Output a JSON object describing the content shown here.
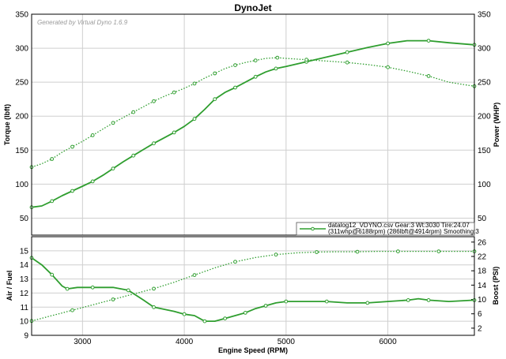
{
  "colors": {
    "series": "#2f9e2f",
    "grid": "#cfcfcf",
    "frame": "#000000",
    "background": "#ffffff"
  },
  "chart_data": [
    {
      "type": "line",
      "title": "DynoJet",
      "watermark": "Generated by Virtual Dyno 1.6.9",
      "xlabel": "",
      "ylabel": "Torque (lbft)",
      "y2label": "Power (WHP)",
      "xlim": [
        2500,
        6850
      ],
      "ylim": [
        25,
        350
      ],
      "y2lim": [
        25,
        350
      ],
      "xticks": [
        3000,
        4000,
        5000,
        6000
      ],
      "yticks": [
        50,
        100,
        150,
        200,
        250,
        300,
        350
      ],
      "y2ticks": [
        50,
        100,
        150,
        200,
        250,
        300,
        350
      ],
      "grid": true,
      "legend": {
        "position": "bottom-right",
        "lines": [
          "datalog12_VDYNO.csv Gear:3 Wt:3030 Tire:24.07",
          "(311whp@6188rpm) (286lbft@4914rpm) Smoothing:3"
        ]
      },
      "series": [
        {
          "axis": "right",
          "style": "solid",
          "x": [
            2500,
            2600,
            2700,
            2800,
            2900,
            3000,
            3100,
            3200,
            3300,
            3400,
            3500,
            3600,
            3700,
            3800,
            3900,
            4000,
            4100,
            4200,
            4300,
            4400,
            4500,
            4600,
            4700,
            4800,
            4900,
            5000,
            5200,
            5400,
            5600,
            5800,
            6000,
            6188,
            6400,
            6600,
            6850
          ],
          "values": [
            66,
            68,
            75,
            83,
            90,
            97,
            104,
            113,
            123,
            133,
            142,
            151,
            160,
            168,
            176,
            185,
            196,
            210,
            225,
            235,
            242,
            250,
            258,
            265,
            270,
            273,
            280,
            287,
            294,
            301,
            307,
            311,
            311,
            308,
            305
          ]
        },
        {
          "axis": "left",
          "style": "dotted",
          "x": [
            2500,
            2600,
            2700,
            2800,
            2900,
            3000,
            3100,
            3200,
            3300,
            3400,
            3500,
            3600,
            3700,
            3800,
            3900,
            4000,
            4100,
            4200,
            4300,
            4400,
            4500,
            4600,
            4700,
            4800,
            4914,
            5000,
            5200,
            5400,
            5600,
            5800,
            6000,
            6200,
            6400,
            6600,
            6850
          ],
          "values": [
            125,
            130,
            137,
            147,
            155,
            163,
            172,
            181,
            190,
            198,
            206,
            214,
            222,
            229,
            235,
            241,
            248,
            256,
            263,
            270,
            275,
            279,
            282,
            285,
            286,
            285,
            283,
            281,
            279,
            276,
            272,
            266,
            259,
            250,
            244
          ]
        }
      ]
    },
    {
      "type": "line",
      "xlabel": "Engine Speed (RPM)",
      "ylabel": "Air / Fuel",
      "y2label": "Boost (PSI)",
      "xlim": [
        2500,
        6850
      ],
      "ylim": [
        9,
        16
      ],
      "y2lim": [
        0,
        27.5
      ],
      "xticks": [
        3000,
        4000,
        5000,
        6000
      ],
      "yticks": [
        9,
        10,
        11,
        12,
        13,
        14,
        15
      ],
      "y2ticks": [
        2,
        6,
        10,
        14,
        18,
        22,
        26
      ],
      "grid": true,
      "series": [
        {
          "axis": "left",
          "style": "solid",
          "x": [
            2500,
            2600,
            2700,
            2800,
            2850,
            2950,
            3100,
            3300,
            3450,
            3600,
            3700,
            3900,
            4000,
            4100,
            4200,
            4300,
            4400,
            4500,
            4600,
            4700,
            4800,
            4900,
            5000,
            5200,
            5400,
            5600,
            5800,
            6000,
            6200,
            6300,
            6400,
            6600,
            6850
          ],
          "values": [
            14.5,
            14.0,
            13.3,
            12.5,
            12.3,
            12.4,
            12.4,
            12.4,
            12.2,
            11.5,
            11.0,
            10.7,
            10.5,
            10.4,
            10.0,
            10.0,
            10.2,
            10.4,
            10.6,
            10.9,
            11.1,
            11.3,
            11.4,
            11.4,
            11.4,
            11.3,
            11.3,
            11.4,
            11.5,
            11.6,
            11.5,
            11.4,
            11.5
          ]
        },
        {
          "axis": "right",
          "style": "dotted",
          "x": [
            2500,
            2700,
            2900,
            3100,
            3300,
            3500,
            3700,
            3900,
            4100,
            4300,
            4500,
            4700,
            4900,
            5100,
            5300,
            5500,
            5700,
            5900,
            6100,
            6300,
            6500,
            6700,
            6850
          ],
          "values": [
            4.0,
            5.5,
            7.0,
            8.5,
            10.0,
            11.5,
            13.0,
            14.8,
            16.8,
            18.8,
            20.5,
            21.7,
            22.5,
            23.0,
            23.2,
            23.3,
            23.3,
            23.4,
            23.4,
            23.4,
            23.4,
            23.4,
            23.4
          ]
        }
      ]
    }
  ]
}
